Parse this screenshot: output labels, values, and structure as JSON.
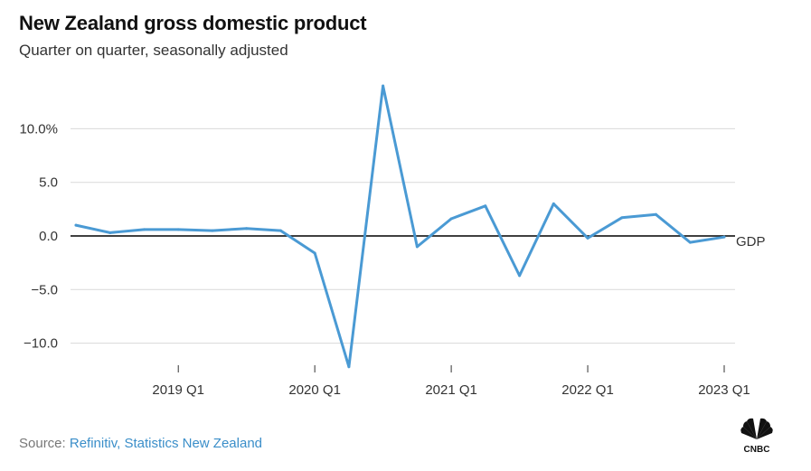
{
  "header": {
    "title": "New Zealand gross domestic product",
    "subtitle": "Quarter on quarter, seasonally adjusted"
  },
  "source": {
    "prefix": "Source: ",
    "text": "Refinitiv, Statistics New Zealand"
  },
  "logo": {
    "text": "CNBC",
    "icon": "cnbc-peacock-icon"
  },
  "colors": {
    "line": "#4a9ad4",
    "zero_line": "#000000",
    "grid": "#d9d9d9"
  },
  "chart_data": {
    "type": "line",
    "title": "New Zealand gross domestic product",
    "subtitle": "Quarter on quarter, seasonally adjusted",
    "xlabel": "",
    "ylabel": "",
    "x": [
      "2018 Q2",
      "2018 Q3",
      "2018 Q4",
      "2019 Q1",
      "2019 Q2",
      "2019 Q3",
      "2019 Q4",
      "2020 Q1",
      "2020 Q2",
      "2020 Q3",
      "2020 Q4",
      "2021 Q1",
      "2021 Q2",
      "2021 Q3",
      "2021 Q4",
      "2022 Q1",
      "2022 Q2",
      "2022 Q3",
      "2022 Q4",
      "2023 Q1"
    ],
    "x_tick_labels": [
      "2019 Q1",
      "2020 Q1",
      "2021 Q1",
      "2022 Q1",
      "2023 Q1"
    ],
    "y_ticks": [
      10,
      5,
      0,
      -5,
      -10
    ],
    "y_tick_labels": [
      "10.0%",
      "5.0",
      "0.0",
      "−5.0",
      "−10.0"
    ],
    "ylim": [
      -12.5,
      14.5
    ],
    "grid": true,
    "series": [
      {
        "name": "GDP",
        "values": [
          1.0,
          0.3,
          0.6,
          0.6,
          0.5,
          0.7,
          0.5,
          -1.6,
          -12.2,
          14.0,
          -1.0,
          1.6,
          2.8,
          -3.7,
          3.0,
          -0.2,
          1.7,
          2.0,
          -0.6,
          -0.1
        ]
      }
    ]
  }
}
